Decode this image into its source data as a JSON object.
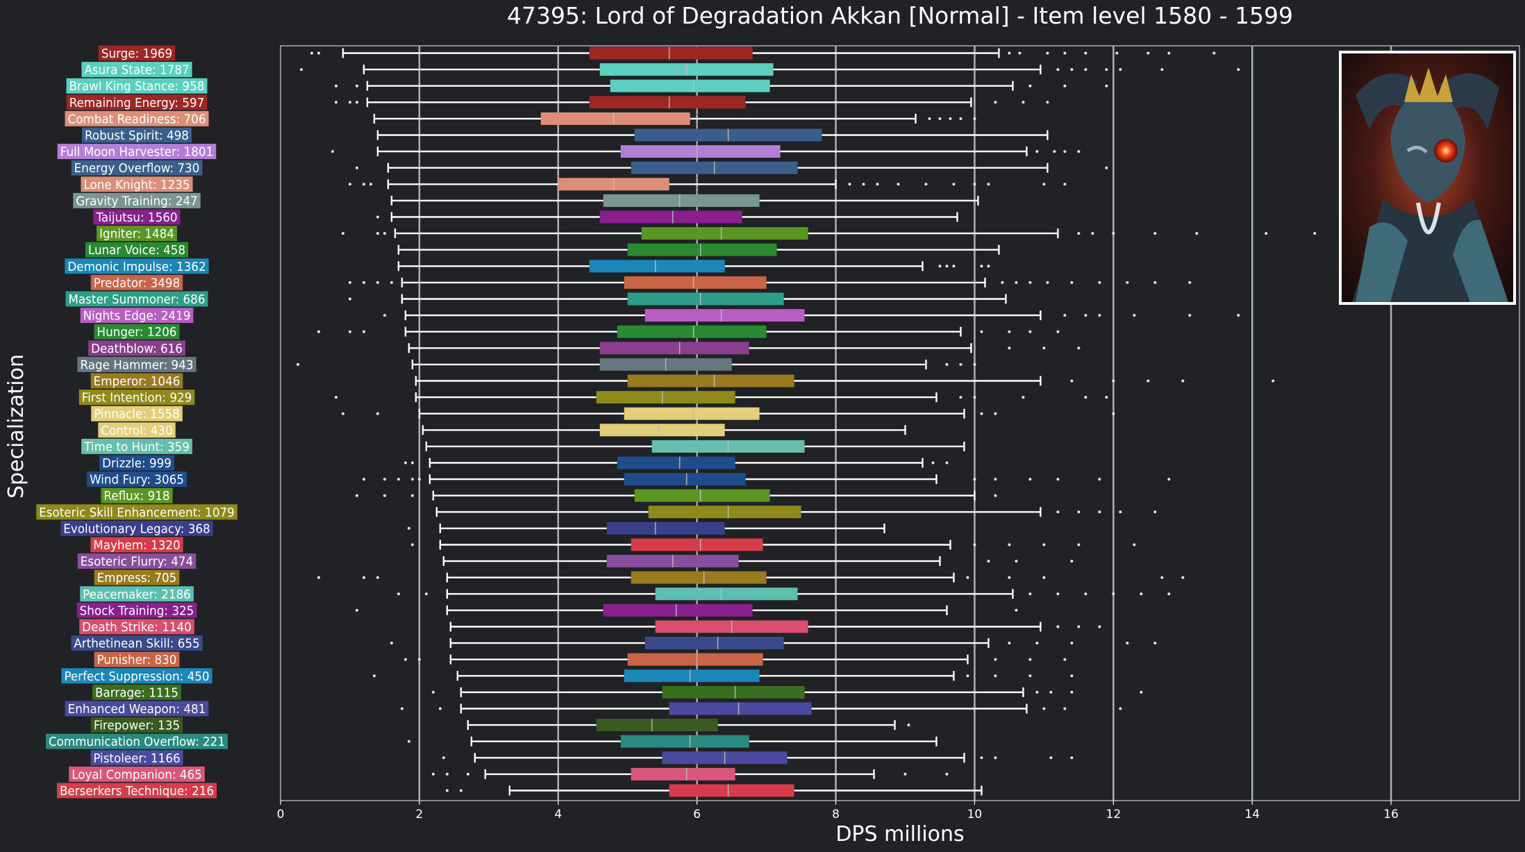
{
  "chart_data": {
    "type": "box",
    "title": "47395: Lord of Degradation Akkan [Normal] - Item level 1580 - 1599",
    "xlabel": "DPS millions",
    "ylabel": "Specialization",
    "xlim": [
      0,
      17.85
    ],
    "xticks": [
      0,
      2,
      4,
      6,
      8,
      10,
      12,
      14,
      16
    ],
    "grid": "vertical lines at even x ticks",
    "median_reference": 6.0,
    "series": [
      {
        "label": "Surge: 1969",
        "color": "#9e2623",
        "whisker_low": 0.9,
        "q1": 4.45,
        "median": 5.6,
        "q3": 6.8,
        "whisker_high": 10.35,
        "outliers": [
          0.45,
          0.55,
          10.5,
          10.65,
          11.05,
          11.3,
          11.6,
          12.05,
          12.5,
          12.8,
          13.45
        ]
      },
      {
        "label": "Asura State: 1787",
        "color": "#5ccfc0",
        "whisker_low": 1.2,
        "q1": 4.6,
        "median": 5.85,
        "q3": 7.1,
        "whisker_high": 10.95,
        "outliers": [
          0.3,
          11.2,
          11.4,
          11.6,
          11.9,
          12.1,
          12.7,
          13.8
        ]
      },
      {
        "label": "Brawl King Stance: 958",
        "color": "#5ccfc0",
        "whisker_low": 1.25,
        "q1": 4.75,
        "median": 5.95,
        "q3": 7.05,
        "whisker_high": 10.55,
        "outliers": [
          0.8,
          1.1,
          10.8,
          11.3,
          11.9
        ]
      },
      {
        "label": "Remaining Energy: 597",
        "color": "#9e2623",
        "whisker_low": 1.25,
        "q1": 4.45,
        "median": 5.6,
        "q3": 6.7,
        "whisker_high": 9.95,
        "outliers": [
          0.8,
          1.0,
          1.1,
          10.3,
          10.7,
          11.05
        ]
      },
      {
        "label": "Combat Readiness: 706",
        "color": "#dc8f78",
        "whisker_low": 1.35,
        "q1": 3.75,
        "median": 4.8,
        "q3": 5.9,
        "whisker_high": 9.15,
        "outliers": [
          9.35,
          9.5,
          9.65,
          9.8,
          10.0
        ]
      },
      {
        "label": "Robust Spirit: 498",
        "color": "#3a5f8c",
        "whisker_low": 1.4,
        "q1": 5.1,
        "median": 6.45,
        "q3": 7.8,
        "whisker_high": 11.05,
        "outliers": []
      },
      {
        "label": "Full Moon Harvester: 1801",
        "color": "#b57ed6",
        "whisker_low": 1.4,
        "q1": 4.9,
        "median": 6.0,
        "q3": 7.2,
        "whisker_high": 10.75,
        "outliers": [
          0.75,
          10.9,
          11.15,
          11.3,
          11.5
        ]
      },
      {
        "label": "Energy Overflow: 730",
        "color": "#3a5f8c",
        "whisker_low": 1.55,
        "q1": 5.05,
        "median": 6.25,
        "q3": 7.45,
        "whisker_high": 11.05,
        "outliers": [
          1.1,
          11.9
        ]
      },
      {
        "label": "Lone Knight: 1235",
        "color": "#dc8f78",
        "whisker_low": 1.55,
        "q1": 4.0,
        "median": 4.8,
        "q3": 5.6,
        "whisker_high": 8.0,
        "outliers": [
          1.0,
          1.2,
          1.3,
          8.2,
          8.4,
          8.6,
          8.9,
          9.3,
          9.7,
          10.0,
          10.2,
          11.0,
          11.3
        ]
      },
      {
        "label": "Gravity Training: 247",
        "color": "#7a9690",
        "whisker_low": 1.6,
        "q1": 4.65,
        "median": 5.75,
        "q3": 6.9,
        "whisker_high": 10.05,
        "outliers": []
      },
      {
        "label": "Taijutsu: 1560",
        "color": "#8a1f8e",
        "whisker_low": 1.6,
        "q1": 4.6,
        "median": 5.65,
        "q3": 6.65,
        "whisker_high": 9.75,
        "outliers": [
          1.4
        ]
      },
      {
        "label": "Igniter: 1484",
        "color": "#5c9622",
        "whisker_low": 1.65,
        "q1": 5.2,
        "median": 6.35,
        "q3": 7.6,
        "whisker_high": 11.2,
        "outliers": [
          0.9,
          1.4,
          1.5,
          11.5,
          11.7,
          12.0,
          12.6,
          13.2,
          14.2,
          14.9
        ]
      },
      {
        "label": "Lunar Voice: 458",
        "color": "#2a8a32",
        "whisker_low": 1.7,
        "q1": 5.0,
        "median": 6.05,
        "q3": 7.15,
        "whisker_high": 10.35,
        "outliers": []
      },
      {
        "label": "Demonic Impulse: 1362",
        "color": "#1b87b8",
        "whisker_low": 1.7,
        "q1": 4.45,
        "median": 5.4,
        "q3": 6.4,
        "whisker_high": 9.25,
        "outliers": [
          9.5,
          9.6,
          9.7,
          10.1,
          10.2
        ]
      },
      {
        "label": "Predator: 3498",
        "color": "#c96446",
        "whisker_low": 1.75,
        "q1": 4.95,
        "median": 5.95,
        "q3": 7.0,
        "whisker_high": 10.15,
        "outliers": [
          1.0,
          1.2,
          1.4,
          1.6,
          10.4,
          10.6,
          10.8,
          11.05,
          11.4,
          11.8,
          12.2,
          12.6,
          13.1
        ]
      },
      {
        "label": "Master Summoner: 686",
        "color": "#2e9e8a",
        "whisker_low": 1.75,
        "q1": 5.0,
        "median": 6.05,
        "q3": 7.25,
        "whisker_high": 10.45,
        "outliers": [
          1.0
        ]
      },
      {
        "label": "Nights Edge: 2419",
        "color": "#b85ec2",
        "whisker_low": 1.8,
        "q1": 5.25,
        "median": 6.35,
        "q3": 7.55,
        "whisker_high": 10.95,
        "outliers": [
          1.5,
          11.3,
          11.6,
          11.8,
          12.3,
          13.1,
          13.8
        ]
      },
      {
        "label": "Hunger: 1206",
        "color": "#2a8a32",
        "whisker_low": 1.8,
        "q1": 4.85,
        "median": 5.95,
        "q3": 7.0,
        "whisker_high": 9.8,
        "outliers": [
          0.55,
          1.0,
          1.2,
          10.1,
          10.5,
          10.8,
          11.2
        ]
      },
      {
        "label": "Deathblow: 616",
        "color": "#8a3e8e",
        "whisker_low": 1.85,
        "q1": 4.6,
        "median": 5.75,
        "q3": 6.75,
        "whisker_high": 9.95,
        "outliers": [
          10.5,
          11.0,
          11.5
        ]
      },
      {
        "label": "Rage Hammer: 943",
        "color": "#66767e",
        "whisker_low": 1.9,
        "q1": 4.6,
        "median": 5.55,
        "q3": 6.5,
        "whisker_high": 9.3,
        "outliers": [
          0.25,
          9.6,
          9.8,
          10.0
        ]
      },
      {
        "label": "Emperor: 1046",
        "color": "#9a7a1f",
        "whisker_low": 1.95,
        "q1": 5.0,
        "median": 6.25,
        "q3": 7.4,
        "whisker_high": 10.95,
        "outliers": [
          11.4,
          12.0,
          12.5,
          13.0,
          14.3
        ]
      },
      {
        "label": "First Intention: 929",
        "color": "#8f8a1a",
        "whisker_low": 1.95,
        "q1": 4.55,
        "median": 5.5,
        "q3": 6.55,
        "whisker_high": 9.45,
        "outliers": [
          0.8,
          9.8,
          10.0,
          10.7,
          11.6,
          11.9
        ]
      },
      {
        "label": "Pinnacle: 1558",
        "color": "#e3ce7a",
        "whisker_low": 2.0,
        "q1": 4.95,
        "median": 5.95,
        "q3": 6.9,
        "whisker_high": 9.85,
        "outliers": [
          0.9,
          1.4,
          10.1,
          10.3,
          12.0
        ]
      },
      {
        "label": "Control: 430",
        "color": "#e3ce7a",
        "whisker_low": 2.05,
        "q1": 4.6,
        "median": 5.45,
        "q3": 6.4,
        "whisker_high": 9.0,
        "outliers": []
      },
      {
        "label": "Time to Hunt: 359",
        "color": "#66bfae",
        "whisker_low": 2.1,
        "q1": 5.35,
        "median": 6.45,
        "q3": 7.55,
        "whisker_high": 9.85,
        "outliers": []
      },
      {
        "label": "Drizzle: 999",
        "color": "#1f4d8c",
        "whisker_low": 2.15,
        "q1": 4.85,
        "median": 5.75,
        "q3": 6.55,
        "whisker_high": 9.25,
        "outliers": [
          1.8,
          1.9,
          9.4,
          9.6
        ]
      },
      {
        "label": "Wind Fury: 3065",
        "color": "#1f4d8c",
        "whisker_low": 2.15,
        "q1": 4.95,
        "median": 5.85,
        "q3": 6.7,
        "whisker_high": 9.45,
        "outliers": [
          1.2,
          1.5,
          1.7,
          1.9,
          2.0,
          10.0,
          10.3,
          10.8,
          11.2,
          11.8,
          12.8
        ]
      },
      {
        "label": "Reflux: 918",
        "color": "#5c9622",
        "whisker_low": 2.2,
        "q1": 5.1,
        "median": 6.05,
        "q3": 7.05,
        "whisker_high": 10.0,
        "outliers": [
          1.1,
          1.5,
          1.9,
          10.3
        ]
      },
      {
        "label": "Esoteric Skill Enhancement: 1079",
        "color": "#8f8a1a",
        "whisker_low": 2.25,
        "q1": 5.3,
        "median": 6.45,
        "q3": 7.5,
        "whisker_high": 10.95,
        "outliers": [
          11.2,
          11.5,
          11.8,
          12.1,
          12.6
        ]
      },
      {
        "label": "Evolutionary Legacy: 368",
        "color": "#3a3f8c",
        "whisker_low": 2.3,
        "q1": 4.7,
        "median": 5.4,
        "q3": 6.4,
        "whisker_high": 8.7,
        "outliers": [
          1.85
        ]
      },
      {
        "label": "Mayhem: 1320",
        "color": "#d63c4a",
        "whisker_low": 2.3,
        "q1": 5.05,
        "median": 6.05,
        "q3": 6.95,
        "whisker_high": 9.65,
        "outliers": [
          1.9,
          10.0,
          10.5,
          11.0,
          11.5,
          12.3
        ]
      },
      {
        "label": "Esoteric Flurry: 474",
        "color": "#8a4e9e",
        "whisker_low": 2.35,
        "q1": 4.7,
        "median": 5.65,
        "q3": 6.6,
        "whisker_high": 9.5,
        "outliers": [
          10.2,
          10.6,
          11.4
        ]
      },
      {
        "label": "Empress: 705",
        "color": "#9a7a1f",
        "whisker_low": 2.4,
        "q1": 5.05,
        "median": 6.1,
        "q3": 7.0,
        "whisker_high": 9.7,
        "outliers": [
          0.55,
          1.2,
          1.4,
          9.9,
          10.5,
          11.0,
          12.7,
          13.0
        ]
      },
      {
        "label": "Peacemaker: 2186",
        "color": "#5cbfb0",
        "whisker_low": 2.4,
        "q1": 5.4,
        "median": 6.35,
        "q3": 7.45,
        "whisker_high": 10.55,
        "outliers": [
          1.7,
          2.1,
          10.8,
          11.2,
          11.6,
          12.0,
          12.4,
          12.8
        ]
      },
      {
        "label": "Shock Training: 325",
        "color": "#8a1f8e",
        "whisker_low": 2.4,
        "q1": 4.65,
        "median": 5.7,
        "q3": 6.8,
        "whisker_high": 9.6,
        "outliers": [
          1.1,
          10.6
        ]
      },
      {
        "label": "Death Strike: 1140",
        "color": "#d94e6e",
        "whisker_low": 2.45,
        "q1": 5.4,
        "median": 6.5,
        "q3": 7.6,
        "whisker_high": 10.95,
        "outliers": [
          11.2,
          11.5,
          11.8
        ]
      },
      {
        "label": "Arthetinean Skill: 655",
        "color": "#3a4a8c",
        "whisker_low": 2.45,
        "q1": 5.25,
        "median": 6.3,
        "q3": 7.25,
        "whisker_high": 10.2,
        "outliers": [
          1.6,
          10.5,
          10.9,
          11.4,
          12.2,
          12.6
        ]
      },
      {
        "label": "Punisher: 830",
        "color": "#c96446",
        "whisker_low": 2.45,
        "q1": 5.0,
        "median": 6.0,
        "q3": 6.95,
        "whisker_high": 9.9,
        "outliers": [
          1.8,
          2.0,
          10.3,
          10.8,
          11.3
        ]
      },
      {
        "label": "Perfect Suppression: 450",
        "color": "#1b87b8",
        "whisker_low": 2.55,
        "q1": 4.95,
        "median": 5.9,
        "q3": 6.9,
        "whisker_high": 9.7,
        "outliers": [
          1.35,
          9.9,
          10.3,
          10.8,
          11.4
        ]
      },
      {
        "label": "Barrage: 1115",
        "color": "#3a6e1f",
        "whisker_low": 2.6,
        "q1": 5.5,
        "median": 6.55,
        "q3": 7.55,
        "whisker_high": 10.7,
        "outliers": [
          2.2,
          10.9,
          11.1,
          11.4,
          12.4
        ]
      },
      {
        "label": "Enhanced Weapon: 481",
        "color": "#4a4a9e",
        "whisker_low": 2.6,
        "q1": 5.6,
        "median": 6.6,
        "q3": 7.65,
        "whisker_high": 10.75,
        "outliers": [
          1.75,
          2.3,
          11.0,
          11.3,
          12.1
        ]
      },
      {
        "label": "Firepower: 135",
        "color": "#3a5a1f",
        "whisker_low": 2.7,
        "q1": 4.55,
        "median": 5.35,
        "q3": 6.3,
        "whisker_high": 8.85,
        "outliers": [
          9.05
        ]
      },
      {
        "label": "Communication Overflow: 221",
        "color": "#2a8a80",
        "whisker_low": 2.75,
        "q1": 4.9,
        "median": 5.9,
        "q3": 6.75,
        "whisker_high": 9.45,
        "outliers": [
          1.85
        ]
      },
      {
        "label": "Pistoleer: 1166",
        "color": "#4a4a9e",
        "whisker_low": 2.8,
        "q1": 5.5,
        "median": 6.4,
        "q3": 7.3,
        "whisker_high": 9.85,
        "outliers": [
          2.35,
          10.1,
          10.3,
          11.1,
          11.4
        ]
      },
      {
        "label": "Loyal Companion: 465",
        "color": "#d9577a",
        "whisker_low": 2.95,
        "q1": 5.05,
        "median": 5.85,
        "q3": 6.55,
        "whisker_high": 8.55,
        "outliers": [
          2.2,
          2.4,
          2.7,
          9.0,
          9.6
        ]
      },
      {
        "label": "Berserkers Technique: 216",
        "color": "#d63c4a",
        "whisker_low": 3.3,
        "q1": 5.6,
        "median": 6.45,
        "q3": 7.4,
        "whisker_high": 10.1,
        "outliers": [
          2.4,
          2.6
        ]
      }
    ]
  }
}
